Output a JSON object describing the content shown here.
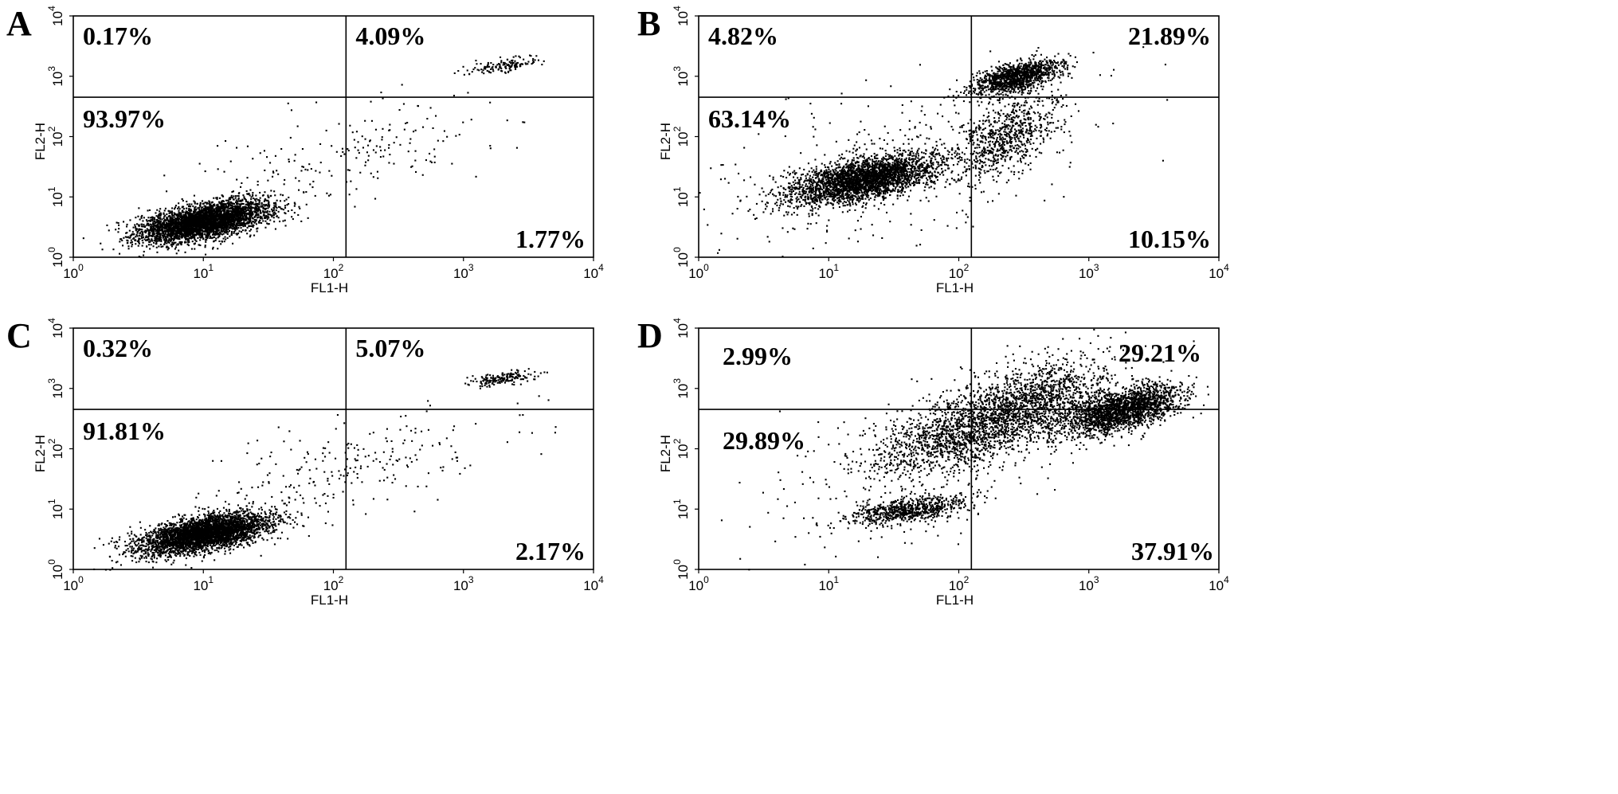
{
  "chart_data": [
    {
      "type": "scatter",
      "panel": "A",
      "xlabel": "FL1-H",
      "ylabel": "FL2-H",
      "scale": "log",
      "xlim": [
        1,
        10000
      ],
      "ylim": [
        1,
        10000
      ],
      "x_ticks": [
        "10^0",
        "10^1",
        "10^2",
        "10^3",
        "10^4"
      ],
      "y_ticks": [
        "10^0",
        "10^1",
        "10^2",
        "10^3",
        "10^4"
      ],
      "gate": {
        "x": 125,
        "y": 450
      },
      "quadrants": {
        "upper_left": "0.17%",
        "upper_right": "4.09%",
        "lower_left": "93.97%",
        "lower_right": "1.77%"
      },
      "populations": [
        {
          "x": 10,
          "y": 4,
          "sx": 0.25,
          "sy": 0.17,
          "n": 3800
        },
        {
          "x": 2000,
          "y": 1500,
          "sx": 0.14,
          "sy": 0.07,
          "n": 140
        },
        {
          "x": 120,
          "y": 50,
          "sx": 0.55,
          "sy": 0.45,
          "n": 200
        }
      ]
    },
    {
      "type": "scatter",
      "panel": "B",
      "xlabel": "FL1-H",
      "ylabel": "FL2-H",
      "scale": "log",
      "xlim": [
        1,
        10000
      ],
      "ylim": [
        1,
        10000
      ],
      "x_ticks": [
        "10^0",
        "10^1",
        "10^2",
        "10^3",
        "10^4"
      ],
      "y_ticks": [
        "10^0",
        "10^1",
        "10^2",
        "10^3",
        "10^4"
      ],
      "gate": {
        "x": 125,
        "y": 450
      },
      "quadrants": {
        "upper_left": "4.82%",
        "upper_right": "21.89%",
        "lower_left": "63.14%",
        "lower_right": "10.15%"
      },
      "populations": [
        {
          "x": 18,
          "y": 20,
          "sx": 0.28,
          "sy": 0.2,
          "n": 3000
        },
        {
          "x": 270,
          "y": 1000,
          "sx": 0.17,
          "sy": 0.14,
          "n": 1200
        },
        {
          "x": 230,
          "y": 100,
          "sx": 0.18,
          "sy": 0.35,
          "n": 700
        },
        {
          "x": 40,
          "y": 40,
          "sx": 0.75,
          "sy": 0.75,
          "n": 400
        }
      ]
    },
    {
      "type": "scatter",
      "panel": "C",
      "xlabel": "FL1-H",
      "ylabel": "FL2-H",
      "scale": "log",
      "xlim": [
        1,
        10000
      ],
      "ylim": [
        1,
        10000
      ],
      "x_ticks": [
        "10^0",
        "10^1",
        "10^2",
        "10^3",
        "10^4"
      ],
      "y_ticks": [
        "10^0",
        "10^1",
        "10^2",
        "10^3",
        "10^4"
      ],
      "gate": {
        "x": 125,
        "y": 450
      },
      "quadrants": {
        "upper_left": "0.32%",
        "upper_right": "5.07%",
        "lower_left": "91.81%",
        "lower_right": "2.17%"
      },
      "populations": [
        {
          "x": 10,
          "y": 4,
          "sx": 0.25,
          "sy": 0.17,
          "n": 3700
        },
        {
          "x": 2000,
          "y": 1500,
          "sx": 0.14,
          "sy": 0.07,
          "n": 170
        },
        {
          "x": 120,
          "y": 50,
          "sx": 0.55,
          "sy": 0.45,
          "n": 240
        }
      ]
    },
    {
      "type": "scatter",
      "panel": "D",
      "xlabel": "FL1-H",
      "ylabel": "FL2-H",
      "scale": "log",
      "xlim": [
        1,
        10000
      ],
      "ylim": [
        1,
        10000
      ],
      "x_ticks": [
        "10^0",
        "10^1",
        "10^2",
        "10^3",
        "10^4"
      ],
      "y_ticks": [
        "10^0",
        "10^1",
        "10^2",
        "10^3",
        "10^4"
      ],
      "gate": {
        "x": 125,
        "y": 450
      },
      "quadrants": {
        "upper_left": "2.99%",
        "upper_right": "29.21%",
        "lower_left": "29.89%",
        "lower_right": "37.91%"
      },
      "populations": [
        {
          "x": 40,
          "y": 10,
          "sx": 0.22,
          "sy": 0.12,
          "n": 700
        },
        {
          "x": 1800,
          "y": 450,
          "sx": 0.22,
          "sy": 0.2,
          "n": 2000
        },
        {
          "x": 300,
          "y": 500,
          "sx": 0.35,
          "sy": 0.4,
          "n": 1800
        },
        {
          "x": 80,
          "y": 150,
          "sx": 0.35,
          "sy": 0.35,
          "n": 900
        },
        {
          "x": 40,
          "y": 40,
          "sx": 0.6,
          "sy": 0.7,
          "n": 250
        }
      ]
    }
  ]
}
